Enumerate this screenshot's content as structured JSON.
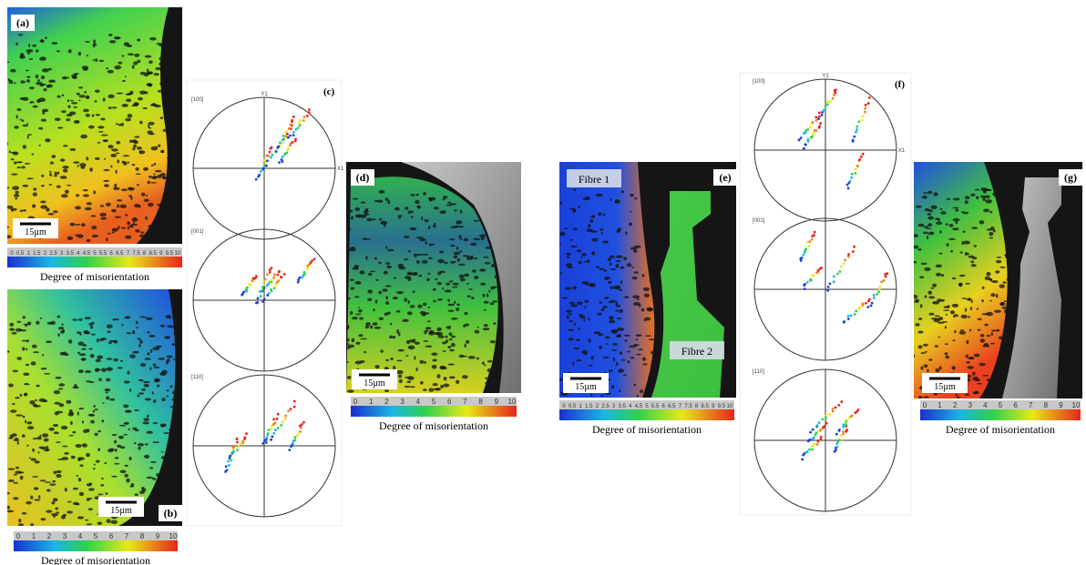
{
  "panels": [
    {
      "label": "(a)",
      "scale_bar": "15µm"
    },
    {
      "label": "(b)",
      "scale_bar": "15µm"
    },
    {
      "label": "(d)",
      "scale_bar": "15µm"
    },
    {
      "label": "(e)",
      "scale_bar": "15µm"
    },
    {
      "label": "(g)",
      "scale_bar": "15µm"
    }
  ],
  "pole_figures": [
    {
      "label": "(c)",
      "plots": [
        {
          "direction": "[100]",
          "y_axis": "Y1",
          "x_axis": "X1"
        },
        {
          "direction": "[001]"
        },
        {
          "direction": "[110]"
        }
      ]
    },
    {
      "label": "(f)",
      "plots": [
        {
          "direction": "[100]",
          "y_axis": "Y1",
          "x_axis": "X1"
        },
        {
          "direction": "[001]"
        },
        {
          "direction": "[110]"
        }
      ]
    }
  ],
  "color_scales": [
    {
      "ticks": [
        0,
        0.5,
        1,
        1.5,
        2,
        2.5,
        3,
        3.5,
        4,
        4.5,
        5,
        5.5,
        6,
        6.5,
        7,
        7.5,
        8,
        8.5,
        9,
        9.5,
        10
      ],
      "title": "Degree of misorientation"
    },
    {
      "ticks": [
        0,
        1,
        2,
        3,
        4,
        5,
        6,
        7,
        8,
        9,
        10
      ],
      "title": "Degree of misorientation"
    },
    {
      "ticks": [
        0,
        1,
        2,
        3,
        4,
        5,
        6,
        7,
        8,
        9,
        10
      ],
      "title": "Degree of misorientation"
    },
    {
      "ticks": [
        0,
        0.5,
        1,
        1.5,
        2,
        2.5,
        3,
        3.5,
        4,
        4.5,
        5,
        5.5,
        6,
        6.5,
        7,
        7.5,
        8,
        8.5,
        9,
        9.5,
        10
      ],
      "title": "Degree of misorientation"
    },
    {
      "ticks": [
        0,
        1,
        2,
        3,
        4,
        5,
        6,
        7,
        8,
        9,
        10
      ],
      "title": "Degree of misorientation"
    }
  ],
  "annotations": [
    "Fibre 1",
    "Fibre 2"
  ]
}
